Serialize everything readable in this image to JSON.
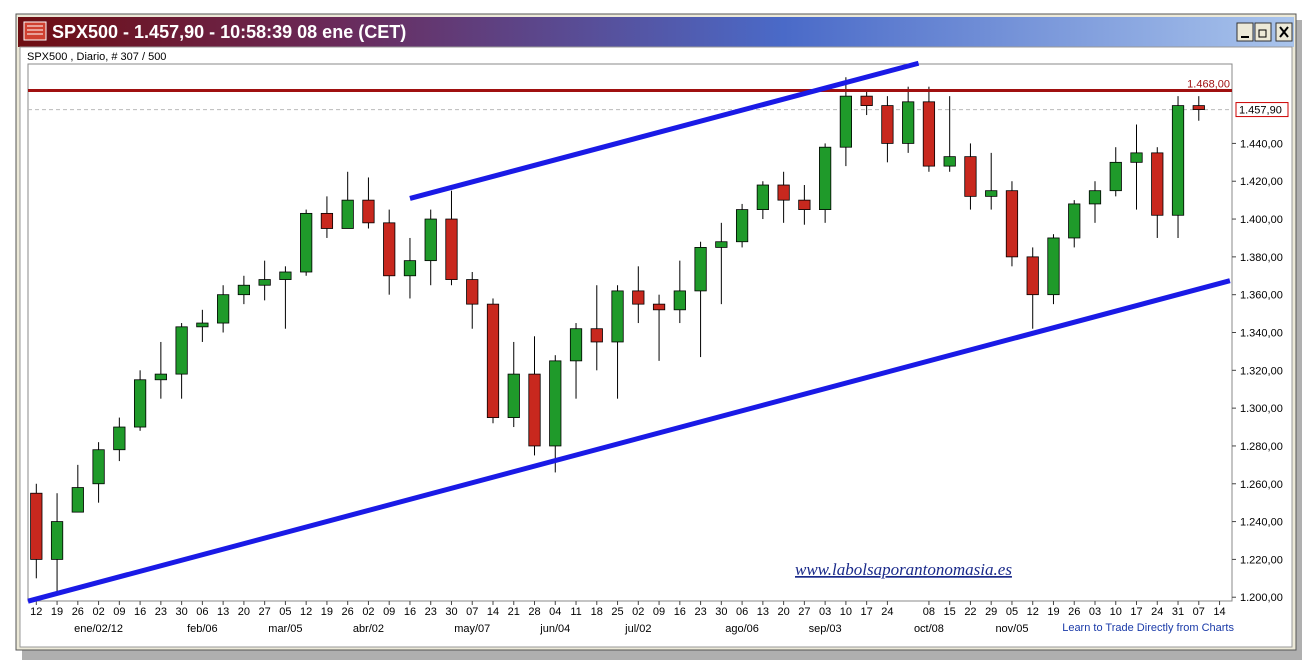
{
  "window": {
    "title": "SPX500 - 1.457,90 - 10:58:39  08 ene (CET)"
  },
  "chart_data": {
    "type": "candlestick",
    "subtitle": "SPX500 , Diario, # 307 / 500",
    "watermark": "www.labolsaporantonomasia.es",
    "footer_link": "Learn to Trade Directly from Charts",
    "up_color": "#1f9a2a",
    "down_color": "#c8281e",
    "trendline_color": "#1a1ae6",
    "xlim": [
      -0.4,
      57.6
    ],
    "ylim": [
      1198,
      1482
    ],
    "yticks": [
      {
        "value": 1200,
        "label": "1.200,00"
      },
      {
        "value": 1220,
        "label": "1.220,00"
      },
      {
        "value": 1240,
        "label": "1.240,00"
      },
      {
        "value": 1260,
        "label": "1.260,00"
      },
      {
        "value": 1280,
        "label": "1.280,00"
      },
      {
        "value": 1300,
        "label": "1.300,00"
      },
      {
        "value": 1320,
        "label": "1.320,00"
      },
      {
        "value": 1340,
        "label": "1.340,00"
      },
      {
        "value": 1360,
        "label": "1.360,00"
      },
      {
        "value": 1380,
        "label": "1.380,00"
      },
      {
        "value": 1400,
        "label": "1.400,00"
      },
      {
        "value": 1420,
        "label": "1.420,00"
      },
      {
        "value": 1440,
        "label": "1.440,00"
      }
    ],
    "xticks": [
      {
        "value": 0,
        "label": "12"
      },
      {
        "value": 1,
        "label": "19"
      },
      {
        "value": 2,
        "label": "26"
      },
      {
        "value": 3,
        "label": "02"
      },
      {
        "value": 4,
        "label": "09"
      },
      {
        "value": 5,
        "label": "16"
      },
      {
        "value": 6,
        "label": "23"
      },
      {
        "value": 7,
        "label": "30"
      },
      {
        "value": 8,
        "label": "06"
      },
      {
        "value": 9,
        "label": "13"
      },
      {
        "value": 10,
        "label": "20"
      },
      {
        "value": 11,
        "label": "27"
      },
      {
        "value": 12,
        "label": "05"
      },
      {
        "value": 13,
        "label": "12"
      },
      {
        "value": 14,
        "label": "19"
      },
      {
        "value": 15,
        "label": "26"
      },
      {
        "value": 16,
        "label": "02"
      },
      {
        "value": 17,
        "label": "09"
      },
      {
        "value": 18,
        "label": "16"
      },
      {
        "value": 19,
        "label": "23"
      },
      {
        "value": 20,
        "label": "30"
      },
      {
        "value": 21,
        "label": "07"
      },
      {
        "value": 22,
        "label": "14"
      },
      {
        "value": 23,
        "label": "21"
      },
      {
        "value": 24,
        "label": "28"
      },
      {
        "value": 25,
        "label": "04"
      },
      {
        "value": 26,
        "label": "11"
      },
      {
        "value": 27,
        "label": "18"
      },
      {
        "value": 28,
        "label": "25"
      },
      {
        "value": 29,
        "label": "02"
      },
      {
        "value": 30,
        "label": "09"
      },
      {
        "value": 31,
        "label": "16"
      },
      {
        "value": 32,
        "label": "23"
      },
      {
        "value": 33,
        "label": "30"
      },
      {
        "value": 34,
        "label": "06"
      },
      {
        "value": 35,
        "label": "13"
      },
      {
        "value": 36,
        "label": "20"
      },
      {
        "value": 37,
        "label": "27"
      },
      {
        "value": 38,
        "label": "03"
      },
      {
        "value": 39,
        "label": "10"
      },
      {
        "value": 40,
        "label": "17"
      },
      {
        "value": 41,
        "label": "24"
      },
      {
        "value": 43,
        "label": "08"
      },
      {
        "value": 44,
        "label": "15"
      },
      {
        "value": 45,
        "label": "22"
      },
      {
        "value": 46,
        "label": "29"
      },
      {
        "value": 47,
        "label": "05"
      },
      {
        "value": 48,
        "label": "12"
      },
      {
        "value": 49,
        "label": "19"
      },
      {
        "value": 50,
        "label": "26"
      },
      {
        "value": 51,
        "label": "03"
      },
      {
        "value": 52,
        "label": "10"
      },
      {
        "value": 53,
        "label": "17"
      },
      {
        "value": 54,
        "label": "24"
      },
      {
        "value": 55,
        "label": "31"
      },
      {
        "value": 56,
        "label": "07"
      },
      {
        "value": 57,
        "label": "14"
      }
    ],
    "month_labels": [
      {
        "value": 3,
        "label": "ene/02/12"
      },
      {
        "value": 8,
        "label": "feb/06"
      },
      {
        "value": 12,
        "label": "mar/05"
      },
      {
        "value": 16,
        "label": "abr/02"
      },
      {
        "value": 21,
        "label": "may/07"
      },
      {
        "value": 25,
        "label": "jun/04"
      },
      {
        "value": 29,
        "label": "jul/02"
      },
      {
        "value": 34,
        "label": "ago/06"
      },
      {
        "value": 38,
        "label": "sep/03"
      },
      {
        "value": 43,
        "label": "oct/08"
      },
      {
        "value": 47,
        "label": "nov/05"
      }
    ],
    "candles": {
      "open": [
        1255,
        1220,
        1245,
        1260,
        1278,
        1290,
        1315,
        1318,
        1343,
        1345,
        1360,
        1365,
        1368,
        1372,
        1403,
        1395,
        1410,
        1398,
        1370,
        1378,
        1400,
        1368,
        1355,
        1295,
        1318,
        1280,
        1325,
        1342,
        1335,
        1362,
        1355,
        1352,
        1362,
        1385,
        1388,
        1405,
        1418,
        1410,
        1405,
        1438,
        1465,
        1460,
        1440,
        1462,
        1428,
        1433,
        1412,
        1415,
        1380,
        1360,
        1390,
        1408,
        1415,
        1430,
        1435,
        1402,
        1460
      ],
      "high": [
        1260,
        1255,
        1270,
        1282,
        1295,
        1320,
        1335,
        1345,
        1352,
        1365,
        1370,
        1378,
        1375,
        1405,
        1412,
        1425,
        1422,
        1405,
        1390,
        1405,
        1415,
        1372,
        1358,
        1335,
        1338,
        1328,
        1345,
        1365,
        1365,
        1375,
        1360,
        1378,
        1388,
        1398,
        1408,
        1420,
        1425,
        1418,
        1440,
        1475,
        1468,
        1465,
        1470,
        1470,
        1465,
        1440,
        1435,
        1420,
        1385,
        1392,
        1410,
        1420,
        1438,
        1450,
        1438,
        1465,
        1465
      ],
      "low": [
        1210,
        1202,
        1245,
        1250,
        1272,
        1288,
        1305,
        1305,
        1335,
        1340,
        1355,
        1357,
        1342,
        1370,
        1390,
        1395,
        1395,
        1360,
        1358,
        1365,
        1365,
        1342,
        1292,
        1290,
        1275,
        1266,
        1305,
        1320,
        1305,
        1345,
        1325,
        1345,
        1327,
        1355,
        1385,
        1400,
        1398,
        1397,
        1398,
        1428,
        1455,
        1430,
        1435,
        1425,
        1425,
        1405,
        1405,
        1375,
        1342,
        1355,
        1385,
        1398,
        1412,
        1405,
        1390,
        1390,
        1452
      ],
      "close": [
        1220,
        1240,
        1258,
        1278,
        1290,
        1315,
        1318,
        1343,
        1345,
        1360,
        1365,
        1368,
        1372,
        1403,
        1395,
        1410,
        1398,
        1370,
        1378,
        1400,
        1368,
        1355,
        1295,
        1318,
        1280,
        1325,
        1342,
        1335,
        1362,
        1355,
        1352,
        1362,
        1385,
        1388,
        1405,
        1418,
        1410,
        1405,
        1438,
        1465,
        1460,
        1440,
        1462,
        1428,
        1433,
        1412,
        1415,
        1380,
        1360,
        1390,
        1408,
        1415,
        1430,
        1435,
        1402,
        1460,
        1457.9
      ]
    },
    "level": {
      "value": 1468,
      "label": "1.468,00",
      "color": "#a01010"
    },
    "last": {
      "value": 1457.9,
      "label": "1.457,90"
    },
    "trendlines": [
      {
        "x": [
          18,
          42.5
        ],
        "y": [
          1410.9,
          1482.4
        ]
      },
      {
        "x": [
          -0.4,
          57.5
        ],
        "y": [
          1197.9,
          1367.4
        ]
      }
    ]
  }
}
